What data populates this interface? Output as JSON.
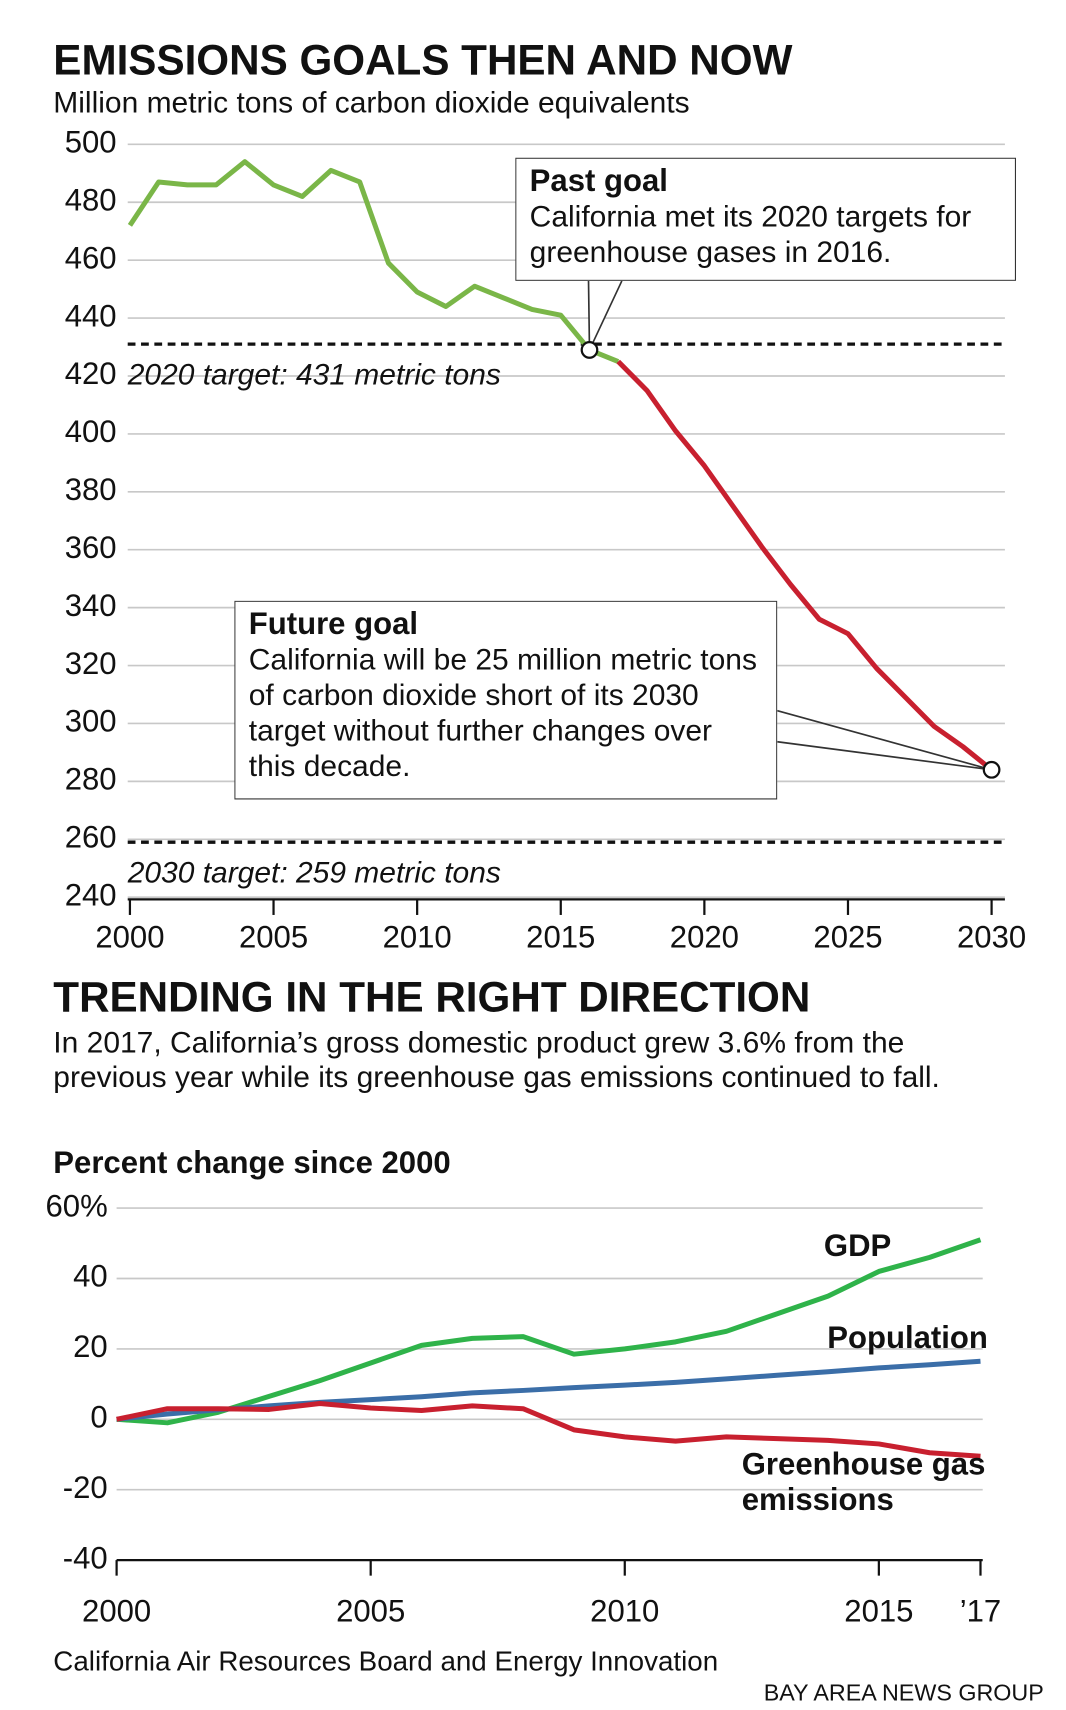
{
  "chart_data": [
    {
      "type": "line",
      "title": "EMISSIONS GOALS THEN AND NOW",
      "subtitle": "Million metric tons of carbon dioxide equivalents",
      "x": [
        2000,
        2001,
        2002,
        2003,
        2004,
        2005,
        2006,
        2007,
        2008,
        2009,
        2010,
        2011,
        2012,
        2013,
        2014,
        2015,
        2016,
        2017,
        2018,
        2019,
        2020,
        2021,
        2022,
        2023,
        2024,
        2025,
        2026,
        2027,
        2028,
        2029,
        2030
      ],
      "series": [
        {
          "color": "#7ab648",
          "values": [
            472,
            487,
            486,
            486,
            494,
            486,
            482,
            491,
            487,
            459,
            449,
            444,
            451,
            447,
            443,
            441,
            429,
            425,
            null,
            null,
            null,
            null,
            null,
            null,
            null,
            null,
            null,
            null,
            null,
            null,
            null
          ]
        },
        {
          "color": "#c8202f",
          "values": [
            null,
            null,
            null,
            null,
            null,
            null,
            null,
            null,
            null,
            null,
            null,
            null,
            null,
            null,
            null,
            null,
            null,
            425,
            415,
            401,
            389,
            375,
            361,
            348,
            336,
            331,
            319,
            309,
            299,
            292,
            284
          ]
        }
      ],
      "xlim": [
        2000,
        2030
      ],
      "xticks": [
        2000,
        2005,
        2010,
        2015,
        2020,
        2025,
        2030
      ],
      "ylim": [
        240,
        500
      ],
      "yticks": [
        240,
        260,
        280,
        300,
        320,
        340,
        360,
        380,
        400,
        420,
        440,
        460,
        480,
        500
      ],
      "grid": true,
      "targets": [
        {
          "label": "2020 target: 431 metric tons",
          "value": 431
        },
        {
          "label": "2030 target: 259 metric tons",
          "value": 259
        }
      ],
      "annotations": [
        {
          "title": "Past goal",
          "text": "California met its 2020 targets for greenhouse gases in 2016.",
          "x": 2016,
          "y": 429
        },
        {
          "title": "Future goal",
          "text": "California will be 25 million metric tons of carbon dioxide short of its 2030 target without further changes over this decade.",
          "x": 2030,
          "y": 284
        }
      ]
    },
    {
      "type": "line",
      "title": "TRENDING IN THE RIGHT DIRECTION",
      "subtitle": "In 2017, California’s gross domestic product grew 3.6% from the previous year while its greenhouse gas emissions continued to fall.",
      "y_label": "Percent change since 2000",
      "x": [
        2000,
        2001,
        2002,
        2003,
        2004,
        2005,
        2006,
        2007,
        2008,
        2009,
        2010,
        2011,
        2012,
        2013,
        2014,
        2015,
        2016,
        2017
      ],
      "series": [
        {
          "name": "GDP",
          "color": "#2fb34a",
          "values": [
            0,
            -1,
            2,
            6.5,
            11,
            16,
            21,
            23,
            23.5,
            18.5,
            20,
            22,
            25,
            30,
            35,
            42,
            46,
            51
          ]
        },
        {
          "name": "Population",
          "color": "#3b6ea8",
          "values": [
            0,
            1.5,
            2.7,
            3.8,
            4.8,
            5.6,
            6.4,
            7.5,
            8.2,
            9,
            9.7,
            10.5,
            11.5,
            12.5,
            13.5,
            14.6,
            15.5,
            16.5
          ]
        },
        {
          "name": "Greenhouse gas emissions",
          "color": "#c8202f",
          "values": [
            0,
            3,
            3,
            2.8,
            4.5,
            3.2,
            2.5,
            3.8,
            3,
            -3,
            -5,
            -6.2,
            -5,
            -5.5,
            -6,
            -7,
            -9.5,
            -10.5
          ]
        }
      ],
      "xlim": [
        2000,
        2017
      ],
      "xticks": [
        2000,
        2005,
        2010,
        2015,
        {
          "value": 2017,
          "label": "’17"
        }
      ],
      "ylim": [
        -40,
        60
      ],
      "yticks": [
        -40,
        -20,
        0,
        20,
        40,
        {
          "value": 60,
          "label": "60%"
        }
      ],
      "grid": true
    }
  ],
  "source": "California Air Resources Board and Energy Innovation",
  "credit": "BAY AREA NEWS GROUP"
}
